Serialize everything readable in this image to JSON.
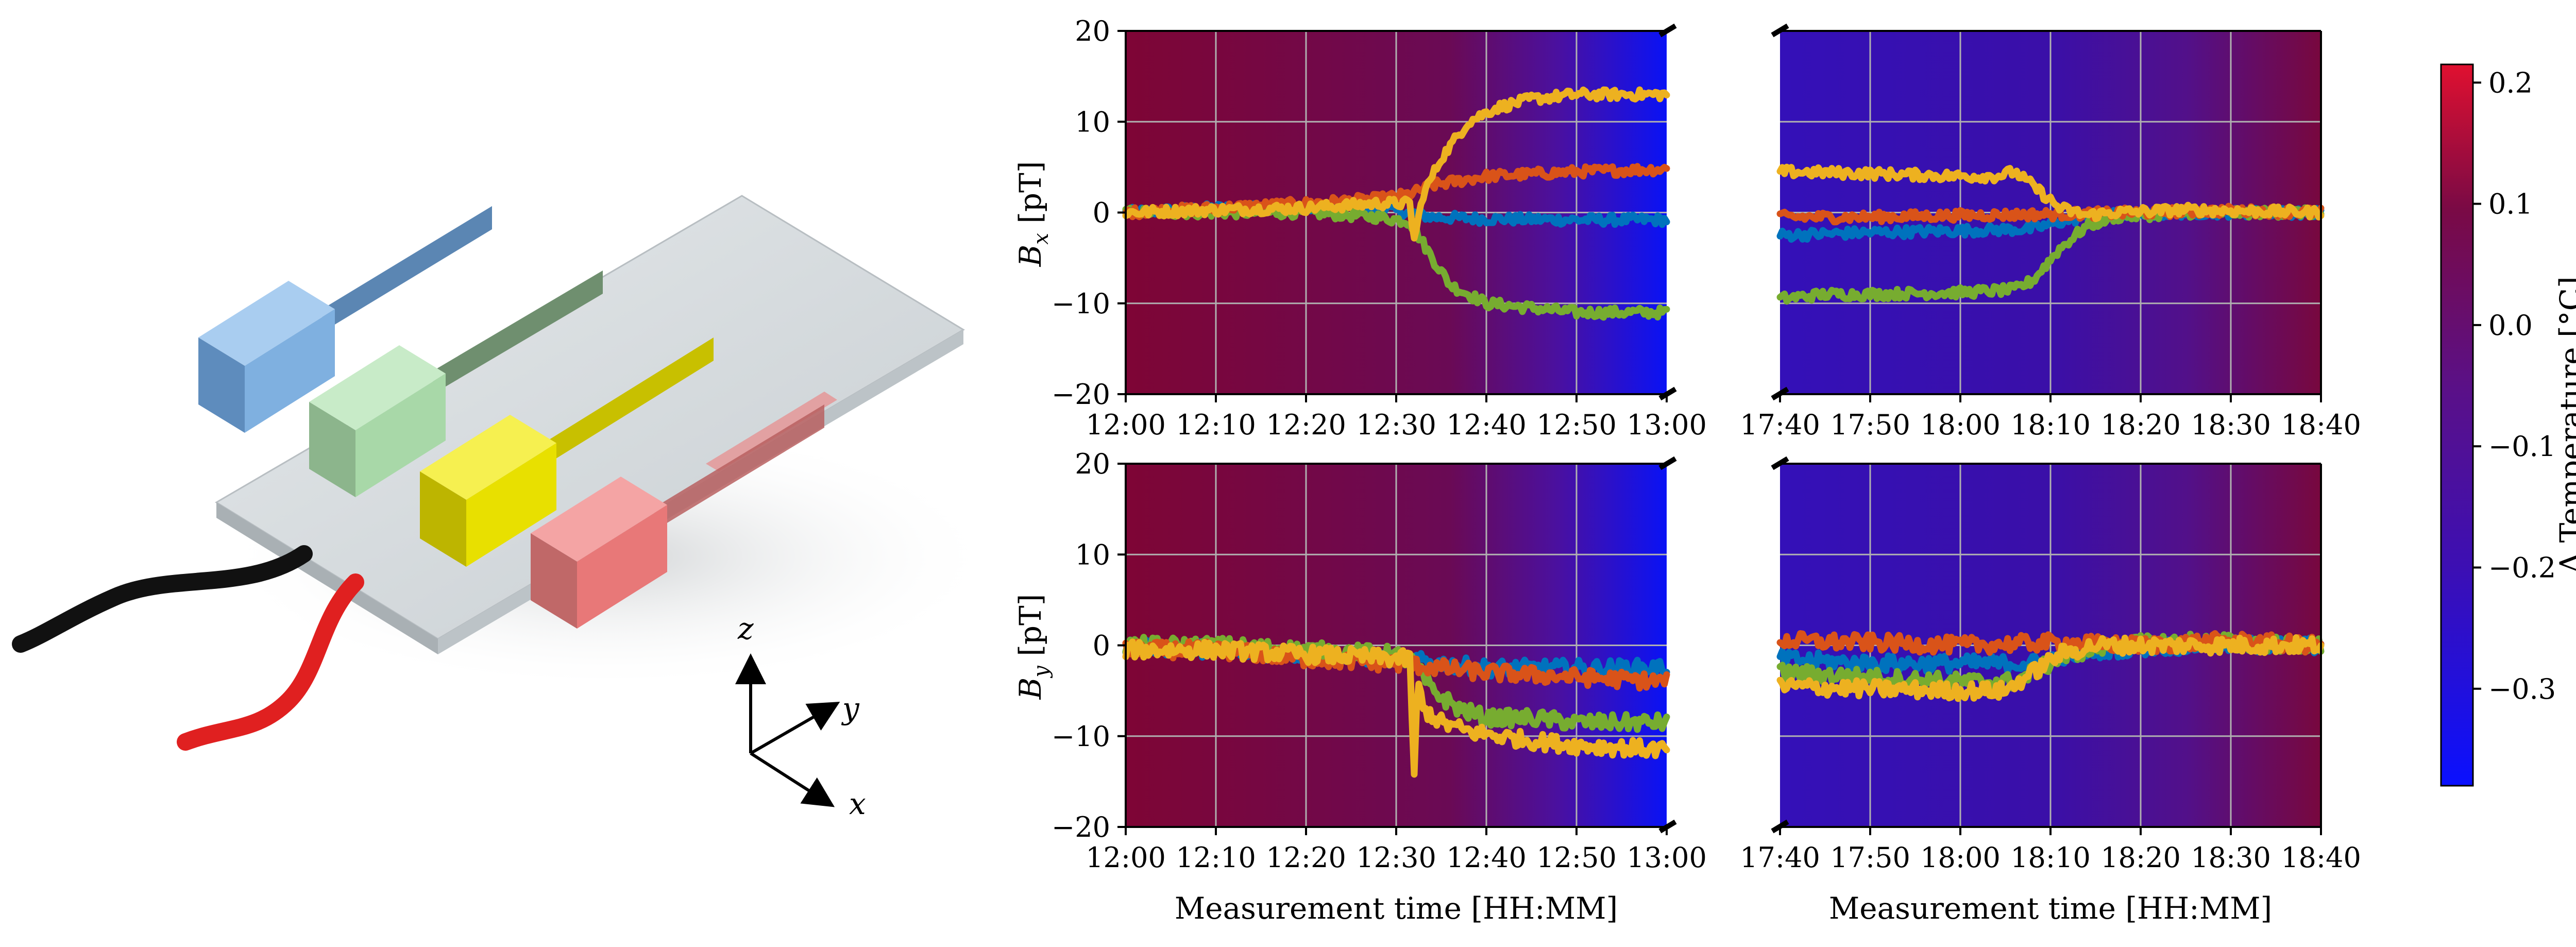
{
  "chart_data": [
    {
      "type": "line",
      "panel": "top-left",
      "ylabel": "B_x [pT]",
      "ylabel_main": "B",
      "ylabel_sub": "x",
      "ylabel_unit": " [pT]",
      "ylim": [
        -20,
        20
      ],
      "yticks": [
        "−20",
        "−10",
        "0",
        "10",
        "20"
      ],
      "ytick_values": [
        -20,
        -10,
        0,
        10,
        20
      ],
      "xlim": [
        0,
        60
      ],
      "xticks": [
        "12:00",
        "12:10",
        "12:20",
        "12:30",
        "12:40",
        "12:50",
        "13:00"
      ],
      "xtick_values": [
        0,
        10,
        20,
        30,
        40,
        50,
        60
      ],
      "xlabel": "",
      "background_delta_temperature": {
        "x": [
          0,
          40,
          50,
          60
        ],
        "values": [
          0.21,
          0.12,
          -0.1,
          -0.38
        ]
      },
      "series": [
        {
          "name": "blue",
          "color": "#0072bd",
          "x": [
            0,
            10,
            20,
            28,
            31.5,
            34,
            40,
            50,
            60
          ],
          "y": [
            0,
            0.5,
            0.5,
            0.5,
            0,
            -0.5,
            -0.7,
            -0.8,
            -0.8
          ]
        },
        {
          "name": "green",
          "color": "#77ac30",
          "x": [
            0,
            10,
            20,
            28,
            31.5,
            34,
            36,
            40,
            45,
            50,
            60
          ],
          "y": [
            0,
            0,
            0,
            -0.5,
            -1,
            -5,
            -8,
            -10,
            -10.5,
            -11,
            -11
          ]
        },
        {
          "name": "red",
          "color": "#d95319",
          "x": [
            0,
            10,
            20,
            28,
            31.5,
            34,
            40,
            50,
            60
          ],
          "y": [
            0,
            0.5,
            1,
            1.5,
            2,
            3,
            4,
            4.5,
            4.8
          ]
        },
        {
          "name": "yellow",
          "color": "#edb120",
          "x": [
            0,
            10,
            20,
            28,
            31.5,
            32,
            33,
            35,
            38,
            41,
            45,
            50,
            60
          ],
          "y": [
            0,
            0.3,
            0.5,
            1,
            1,
            -3,
            2,
            6,
            10,
            11.5,
            12.5,
            13,
            13
          ]
        }
      ]
    },
    {
      "type": "line",
      "panel": "top-right",
      "ylabel": "",
      "ylim": [
        -20,
        20
      ],
      "xlim": [
        0,
        60
      ],
      "xticks": [
        "17:40",
        "17:50",
        "18:00",
        "18:10",
        "18:20",
        "18:30",
        "18:40"
      ],
      "xtick_values": [
        0,
        10,
        20,
        30,
        40,
        50,
        60
      ],
      "xlabel": "",
      "background_delta_temperature": {
        "x": [
          0,
          30,
          60
        ],
        "values": [
          -0.25,
          -0.2,
          0.18
        ]
      },
      "series": [
        {
          "name": "blue",
          "color": "#0072bd",
          "x": [
            0,
            10,
            20,
            28,
            32,
            36,
            45,
            60
          ],
          "y": [
            -2.5,
            -2.2,
            -2,
            -1.8,
            -0.8,
            -0.3,
            0,
            0
          ]
        },
        {
          "name": "green",
          "color": "#77ac30",
          "x": [
            0,
            5,
            10,
            20,
            26,
            28,
            31,
            34,
            37,
            45,
            60
          ],
          "y": [
            -9.5,
            -9,
            -9,
            -8.8,
            -8.5,
            -7.5,
            -4,
            -1.5,
            -0.5,
            0,
            0
          ]
        },
        {
          "name": "red",
          "color": "#d95319",
          "x": [
            0,
            10,
            20,
            30,
            40,
            50,
            60
          ],
          "y": [
            -0.5,
            -0.5,
            -0.3,
            -0.2,
            0,
            0.2,
            0
          ]
        },
        {
          "name": "yellow",
          "color": "#edb120",
          "x": [
            0,
            10,
            20,
            24,
            26,
            28,
            31,
            34,
            37,
            45,
            60
          ],
          "y": [
            4.5,
            4.3,
            4,
            4,
            4.5,
            3,
            0.5,
            -0.3,
            0,
            0.3,
            0
          ]
        }
      ]
    },
    {
      "type": "line",
      "panel": "bottom-left",
      "ylabel": "B_y [pT]",
      "ylabel_main": "B",
      "ylabel_sub": "y",
      "ylabel_unit": " [pT]",
      "ylim": [
        -20,
        20
      ],
      "yticks": [
        "−20",
        "−10",
        "0",
        "10",
        "20"
      ],
      "ytick_values": [
        -20,
        -10,
        0,
        10,
        20
      ],
      "xlim": [
        0,
        60
      ],
      "xticks": [
        "12:00",
        "12:10",
        "12:20",
        "12:30",
        "12:40",
        "12:50",
        "13:00"
      ],
      "xtick_values": [
        0,
        10,
        20,
        30,
        40,
        50,
        60
      ],
      "xlabel": "Measurement time [HH:MM]",
      "background_delta_temperature": {
        "x": [
          0,
          40,
          50,
          60
        ],
        "values": [
          0.21,
          0.12,
          -0.1,
          -0.38
        ]
      },
      "series": [
        {
          "name": "blue",
          "color": "#0072bd",
          "x": [
            0,
            10,
            20,
            30,
            35,
            40,
            50,
            60
          ],
          "y": [
            0,
            -0.5,
            -1,
            -1.5,
            -2,
            -2.5,
            -2.5,
            -2.5
          ]
        },
        {
          "name": "green",
          "color": "#77ac30",
          "x": [
            0,
            10,
            20,
            30,
            32,
            34,
            37,
            40,
            45,
            50,
            60
          ],
          "y": [
            0,
            0,
            -0.5,
            -1,
            -2,
            -5,
            -7,
            -8,
            -8,
            -8.5,
            -8.5
          ]
        },
        {
          "name": "red",
          "color": "#d95319",
          "x": [
            0,
            10,
            20,
            30,
            35,
            40,
            50,
            60
          ],
          "y": [
            -0.5,
            -0.5,
            -1.5,
            -2,
            -2.5,
            -3,
            -3.5,
            -4
          ]
        },
        {
          "name": "yellow",
          "color": "#edb120",
          "x": [
            0,
            10,
            20,
            31.5,
            32,
            32.4,
            33,
            35,
            38,
            45,
            50,
            60
          ],
          "y": [
            -0.5,
            -0.5,
            -1,
            -1.5,
            -14,
            -4,
            -7,
            -8.5,
            -9.5,
            -10.5,
            -11,
            -11.5
          ]
        }
      ]
    },
    {
      "type": "line",
      "panel": "bottom-right",
      "ylabel": "",
      "ylim": [
        -20,
        20
      ],
      "xlim": [
        0,
        60
      ],
      "xticks": [
        "17:40",
        "17:50",
        "18:00",
        "18:10",
        "18:20",
        "18:30",
        "18:40"
      ],
      "xtick_values": [
        0,
        10,
        20,
        30,
        40,
        50,
        60
      ],
      "xlabel": "Measurement time [HH:MM]",
      "background_delta_temperature": {
        "x": [
          0,
          30,
          60
        ],
        "values": [
          -0.25,
          -0.2,
          0.18
        ]
      },
      "series": [
        {
          "name": "blue",
          "color": "#0072bd",
          "x": [
            0,
            10,
            20,
            28,
            32,
            36,
            45,
            60
          ],
          "y": [
            -1.5,
            -2,
            -2,
            -2,
            -1,
            -0.5,
            0,
            0
          ]
        },
        {
          "name": "green",
          "color": "#77ac30",
          "x": [
            0,
            10,
            20,
            26,
            28,
            31,
            34,
            37,
            45,
            60
          ],
          "y": [
            -3,
            -3.5,
            -4,
            -4,
            -3,
            -1.5,
            -0.5,
            0,
            0.5,
            0
          ]
        },
        {
          "name": "red",
          "color": "#d95319",
          "x": [
            0,
            10,
            20,
            30,
            40,
            50,
            60
          ],
          "y": [
            0.5,
            0.3,
            0,
            0.3,
            0,
            0.5,
            0
          ]
        },
        {
          "name": "yellow",
          "color": "#edb120",
          "x": [
            0,
            10,
            20,
            25,
            28,
            31,
            35,
            45,
            60
          ],
          "y": [
            -4.5,
            -4.8,
            -5,
            -5,
            -3,
            -1,
            0,
            0,
            0
          ]
        }
      ]
    }
  ],
  "colorbar": {
    "label": "Δ Temperature [°C]",
    "range": [
      -0.38,
      0.215
    ],
    "ticks": [
      "0.2",
      "0.1",
      "0.0",
      "−0.1",
      "−0.2",
      "−0.3"
    ],
    "tick_values": [
      0.2,
      0.1,
      0.0,
      -0.1,
      -0.2,
      -0.3
    ],
    "colormap": [
      {
        "stop": 0.0,
        "color": "#0a10ff"
      },
      {
        "stop": 0.3,
        "color": "#3c0fb4"
      },
      {
        "stop": 0.55,
        "color": "#5a1088"
      },
      {
        "stop": 0.8,
        "color": "#7a0a45"
      },
      {
        "stop": 1.0,
        "color": "#e01030"
      }
    ]
  },
  "schematic": {
    "axis_labels": {
      "z": "z",
      "y": "y",
      "x": "x"
    },
    "sensor_colors": [
      "#7fb0e0",
      "#a8d8a8",
      "#e8e000",
      "#e87878"
    ],
    "board_color": "#d8dde0",
    "cable_colors": [
      "#111111",
      "#e02020"
    ]
  }
}
